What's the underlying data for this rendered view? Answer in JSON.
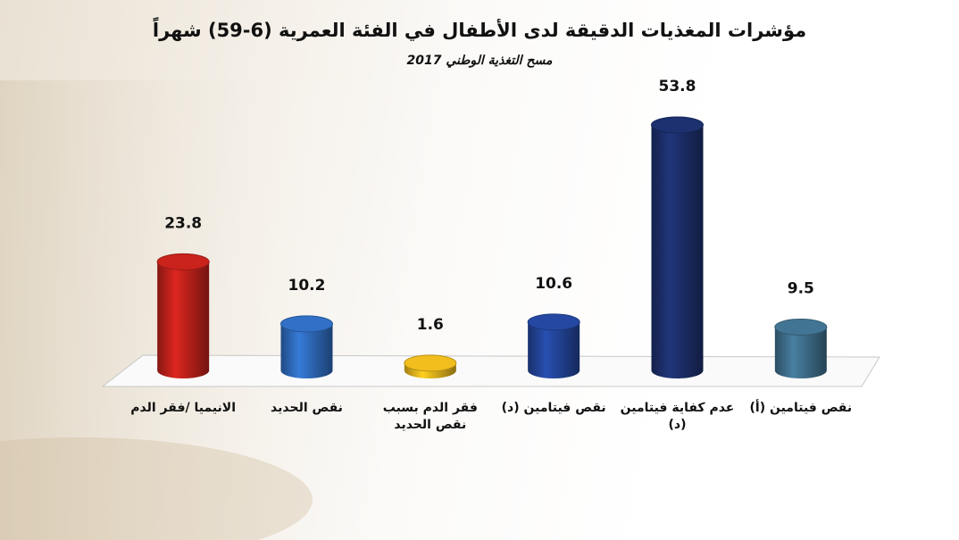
{
  "chart_data": {
    "type": "bar",
    "title": "مؤشرات المغذيات الدقيقة لدى الأطفال في الفئة العمرية (6-59) شهراً",
    "subtitle": "مسح التغذية الوطني 2017",
    "categories": [
      "الانيميا /فقر الدم",
      "نقص الحديد",
      "فقر الدم بسبب نقص الحديد",
      "نقص فيتامين (د)",
      "عدم كفاية فيتامين (د)",
      "نقص فيتامين (أ)"
    ],
    "values": [
      23.8,
      10.2,
      1.6,
      10.6,
      53.8,
      9.5
    ],
    "colors": [
      "#c0211b",
      "#2f6bbd",
      "#e6b51c",
      "#23459a",
      "#1c2f6b",
      "#3f6f8c"
    ]
  }
}
